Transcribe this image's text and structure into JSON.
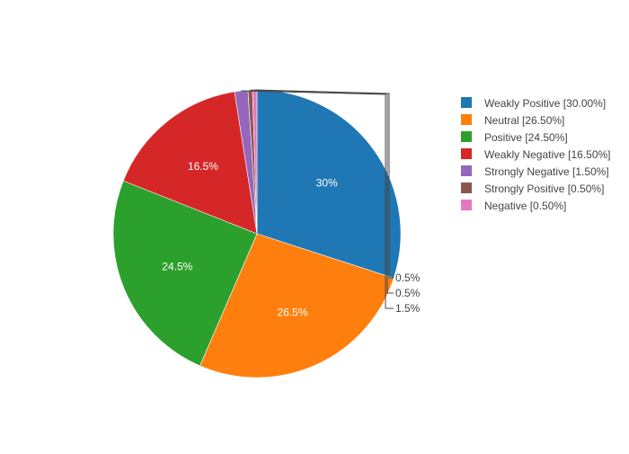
{
  "chart_data": {
    "type": "pie",
    "title": "",
    "categories": [
      "Weakly Positive",
      "Neutral",
      "Positive",
      "Weakly Negative",
      "Strongly Negative",
      "Strongly Positive",
      "Negative"
    ],
    "values": [
      30.0,
      26.5,
      24.5,
      16.5,
      1.5,
      0.5,
      0.5
    ],
    "slice_labels": [
      "30%",
      "26.5%",
      "24.5%",
      "16.5%",
      "1.5%",
      "0.5%",
      "0.5%"
    ],
    "legend_entries": [
      "Weakly Positive [30.00%]",
      "Neutral [26.50%]",
      "Positive [24.50%]",
      "Weakly Negative [16.50%]",
      "Strongly Negative [1.50%]",
      "Strongly Positive [0.50%]",
      "Negative [0.50%]"
    ],
    "colors": [
      "#1f77b4",
      "#ff7f0e",
      "#2ca02c",
      "#d62728",
      "#9467bd",
      "#8c564b",
      "#e377c2"
    ],
    "legend_position": "top-right",
    "direction": "clockwise",
    "start_angle": "top"
  }
}
